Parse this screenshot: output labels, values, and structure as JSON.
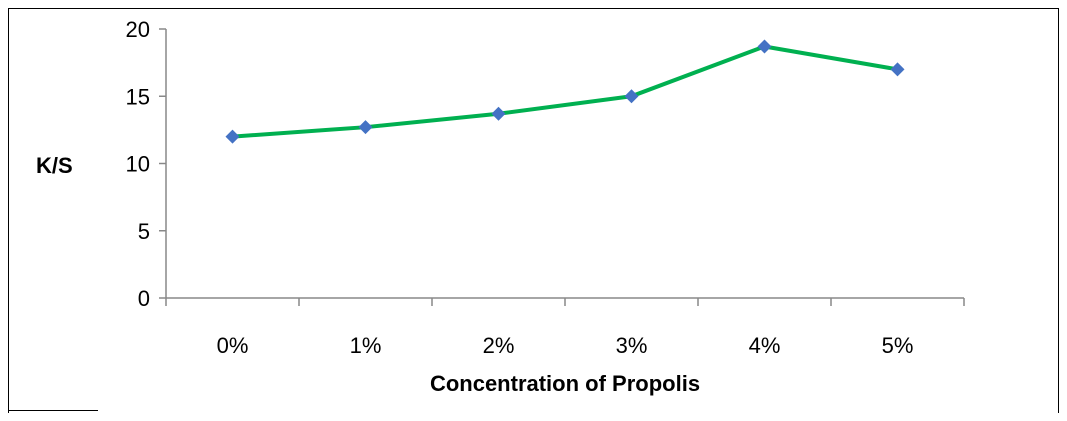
{
  "chart_data": {
    "type": "line",
    "title": "",
    "xlabel": "Concentration of Propolis",
    "ylabel": "K/S",
    "categories": [
      "0%",
      "1%",
      "2%",
      "3%",
      "4%",
      "5%"
    ],
    "series": [
      {
        "values": [
          12.0,
          12.7,
          13.7,
          15.0,
          18.7,
          17.0
        ],
        "color": "#00b050",
        "marker": "diamond",
        "marker_color": "#4472c4"
      }
    ],
    "ylim": [
      0,
      20
    ],
    "yticks": [
      0,
      5,
      10,
      15,
      20
    ],
    "grid": false,
    "legend": "none"
  }
}
